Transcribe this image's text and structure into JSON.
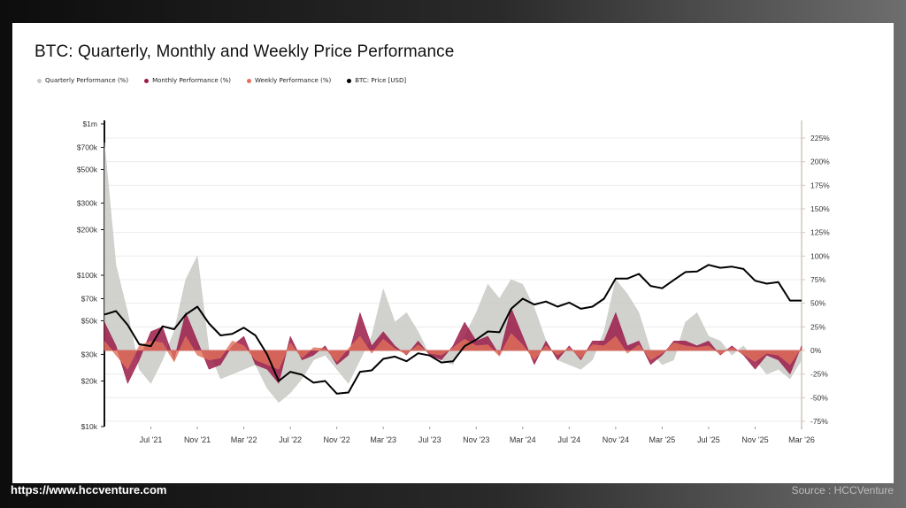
{
  "footer": {
    "url": "https://www.hccventure.com",
    "source": "Source : HCCVenture"
  },
  "chart_data": {
    "type": "line",
    "title": "BTC: Quarterly, Monthly and Weekly Price Performance",
    "legend": [
      {
        "label": "Quarterly Performance (%)",
        "color": "#c9c9c5"
      },
      {
        "label": "Monthly Performance (%)",
        "color": "#9b1b48"
      },
      {
        "label": "Weekly Performance (%)",
        "color": "#e0705a"
      },
      {
        "label": "BTC: Price [USD]",
        "color": "#000000"
      }
    ],
    "legend_position": "top-left",
    "y_left": {
      "scale": "log",
      "range": [
        10000,
        1000000
      ],
      "ticks": [
        10000,
        20000,
        30000,
        50000,
        70000,
        100000,
        200000,
        300000,
        500000,
        700000,
        1000000
      ],
      "tick_labels": [
        "$10k",
        "$20k",
        "$30k",
        "$50k",
        "$70k",
        "$100k",
        "$200k",
        "$300k",
        "$500k",
        "$700k",
        "$1m"
      ]
    },
    "y_right": {
      "range": [
        -75,
        225
      ],
      "ticks": [
        -75,
        -50,
        -25,
        0,
        25,
        50,
        75,
        100,
        125,
        150,
        175,
        200,
        225
      ],
      "tick_labels": [
        "-75%",
        "-50%",
        "-25%",
        "0%",
        "25%",
        "50%",
        "75%",
        "100%",
        "125%",
        "150%",
        "175%",
        "200%",
        "225%"
      ]
    },
    "x_range": [
      "2021-03",
      "2026-03"
    ],
    "x_ticks": [
      "2021-07",
      "2021-11",
      "2022-03",
      "2022-07",
      "2022-11",
      "2023-03",
      "2023-07",
      "2023-11",
      "2024-03",
      "2024-07",
      "2024-11",
      "2025-03",
      "2025-07",
      "2025-11",
      "2026-03"
    ],
    "x_tick_labels": [
      "Jul '21",
      "Nov '21",
      "Mar '22",
      "Jul '22",
      "Nov '22",
      "Mar '23",
      "Jul '23",
      "Nov '23",
      "Mar '24",
      "Jul '24",
      "Nov '24",
      "Mar '25",
      "Jul '25",
      "Nov '25",
      "Mar '26"
    ],
    "grid": true,
    "series": [
      {
        "name": "BTC: Price [USD]",
        "axis": "left",
        "x": [
          "2021-03",
          "2021-04",
          "2021-05",
          "2021-06",
          "2021-07",
          "2021-08",
          "2021-09",
          "2021-10",
          "2021-11",
          "2021-12",
          "2022-01",
          "2022-02",
          "2022-03",
          "2022-04",
          "2022-05",
          "2022-06",
          "2022-07",
          "2022-08",
          "2022-09",
          "2022-10",
          "2022-11",
          "2022-12",
          "2023-01",
          "2023-02",
          "2023-03",
          "2023-04",
          "2023-05",
          "2023-06",
          "2023-07",
          "2023-08",
          "2023-09",
          "2023-10",
          "2023-11",
          "2023-12",
          "2024-01",
          "2024-02",
          "2024-03",
          "2024-04",
          "2024-05",
          "2024-06",
          "2024-07",
          "2024-08",
          "2024-09",
          "2024-10",
          "2024-11",
          "2024-12",
          "2025-01",
          "2025-02",
          "2025-03",
          "2025-04",
          "2025-05",
          "2025-06",
          "2025-07",
          "2025-08",
          "2025-09",
          "2025-10",
          "2025-11",
          "2025-12",
          "2026-01",
          "2026-02",
          "2026-03"
        ],
        "values": [
          55000,
          58000,
          47000,
          35000,
          34000,
          46000,
          44000,
          55000,
          62000,
          48000,
          40000,
          41000,
          45000,
          40000,
          30000,
          20000,
          23000,
          22000,
          19500,
          20000,
          16500,
          16800,
          23000,
          23500,
          28000,
          29000,
          27000,
          30500,
          29500,
          26500,
          27000,
          34000,
          37500,
          42500,
          42000,
          60000,
          70000,
          64000,
          67000,
          62000,
          66000,
          60000,
          62000,
          70000,
          95000,
          95000,
          102000,
          85000,
          82000,
          93000,
          105000,
          106000,
          117000,
          112000,
          114000,
          110000,
          92000,
          88000,
          90000,
          68000,
          68000
        ]
      },
      {
        "name": "Quarterly Performance (%)",
        "axis": "right",
        "x": [
          "2021-03",
          "2021-04",
          "2021-05",
          "2021-06",
          "2021-07",
          "2021-08",
          "2021-09",
          "2021-10",
          "2021-11",
          "2021-12",
          "2022-01",
          "2022-02",
          "2022-03",
          "2022-04",
          "2022-05",
          "2022-06",
          "2022-07",
          "2022-08",
          "2022-09",
          "2022-10",
          "2022-11",
          "2022-12",
          "2023-01",
          "2023-02",
          "2023-03",
          "2023-04",
          "2023-05",
          "2023-06",
          "2023-07",
          "2023-08",
          "2023-09",
          "2023-10",
          "2023-11",
          "2023-12",
          "2024-01",
          "2024-02",
          "2024-03",
          "2024-04",
          "2024-05",
          "2024-06",
          "2024-07",
          "2024-08",
          "2024-09",
          "2024-10",
          "2024-11",
          "2024-12",
          "2025-01",
          "2025-02",
          "2025-03",
          "2025-04",
          "2025-05",
          "2025-06",
          "2025-07",
          "2025-08",
          "2025-09",
          "2025-10",
          "2025-11",
          "2025-12",
          "2026-01",
          "2026-02",
          "2026-03"
        ],
        "values": [
          220,
          90,
          40,
          -20,
          -35,
          -10,
          20,
          75,
          100,
          0,
          -30,
          -25,
          -20,
          -15,
          -40,
          -55,
          -45,
          -30,
          -10,
          -5,
          -20,
          -35,
          -10,
          15,
          65,
          30,
          40,
          20,
          -5,
          -10,
          -15,
          15,
          40,
          70,
          55,
          75,
          70,
          45,
          10,
          -10,
          -15,
          -20,
          -10,
          20,
          75,
          60,
          40,
          0,
          -15,
          -10,
          30,
          40,
          15,
          10,
          -5,
          5,
          -10,
          -25,
          -20,
          -30,
          -10
        ]
      },
      {
        "name": "Monthly Performance (%)",
        "axis": "right",
        "x": [
          "2021-03",
          "2021-04",
          "2021-05",
          "2021-06",
          "2021-07",
          "2021-08",
          "2021-09",
          "2021-10",
          "2021-11",
          "2021-12",
          "2022-01",
          "2022-02",
          "2022-03",
          "2022-04",
          "2022-05",
          "2022-06",
          "2022-07",
          "2022-08",
          "2022-09",
          "2022-10",
          "2022-11",
          "2022-12",
          "2023-01",
          "2023-02",
          "2023-03",
          "2023-04",
          "2023-05",
          "2023-06",
          "2023-07",
          "2023-08",
          "2023-09",
          "2023-10",
          "2023-11",
          "2023-12",
          "2024-01",
          "2024-02",
          "2024-03",
          "2024-04",
          "2024-05",
          "2024-06",
          "2024-07",
          "2024-08",
          "2024-09",
          "2024-10",
          "2024-11",
          "2024-12",
          "2025-01",
          "2025-02",
          "2025-03",
          "2025-04",
          "2025-05",
          "2025-06",
          "2025-07",
          "2025-08",
          "2025-09",
          "2025-10",
          "2025-11",
          "2025-12",
          "2026-01",
          "2026-02",
          "2026-03"
        ],
        "values": [
          30,
          5,
          -35,
          -10,
          20,
          25,
          -10,
          40,
          10,
          -20,
          -15,
          5,
          15,
          -15,
          -20,
          -35,
          15,
          -10,
          -5,
          5,
          -15,
          -5,
          40,
          5,
          20,
          5,
          -5,
          10,
          -5,
          -10,
          5,
          30,
          10,
          15,
          -5,
          45,
          15,
          -15,
          10,
          -10,
          5,
          -10,
          10,
          10,
          40,
          5,
          10,
          -15,
          -5,
          10,
          10,
          5,
          10,
          -5,
          5,
          -5,
          -20,
          -5,
          -10,
          -25,
          5
        ]
      },
      {
        "name": "Weekly Performance (%)",
        "axis": "right",
        "x": [
          "2021-03",
          "2021-04",
          "2021-05",
          "2021-06",
          "2021-07",
          "2021-08",
          "2021-09",
          "2021-10",
          "2021-11",
          "2021-12",
          "2022-01",
          "2022-02",
          "2022-03",
          "2022-04",
          "2022-05",
          "2022-06",
          "2022-07",
          "2022-08",
          "2022-09",
          "2022-10",
          "2022-11",
          "2022-12",
          "2023-01",
          "2023-02",
          "2023-03",
          "2023-04",
          "2023-05",
          "2023-06",
          "2023-07",
          "2023-08",
          "2023-09",
          "2023-10",
          "2023-11",
          "2023-12",
          "2024-01",
          "2024-02",
          "2024-03",
          "2024-04",
          "2024-05",
          "2024-06",
          "2024-07",
          "2024-08",
          "2024-09",
          "2024-10",
          "2024-11",
          "2024-12",
          "2025-01",
          "2025-02",
          "2025-03",
          "2025-04",
          "2025-05",
          "2025-06",
          "2025-07",
          "2025-08",
          "2025-09",
          "2025-10",
          "2025-11",
          "2025-12",
          "2026-01",
          "2026-02",
          "2026-03"
        ],
        "values": [
          10,
          -5,
          -20,
          5,
          10,
          8,
          -12,
          15,
          -5,
          -10,
          -8,
          10,
          5,
          -10,
          -15,
          -20,
          8,
          -8,
          3,
          2,
          -12,
          2,
          15,
          -3,
          12,
          2,
          -4,
          6,
          -3,
          -5,
          3,
          12,
          5,
          6,
          -6,
          18,
          6,
          -10,
          5,
          -5,
          3,
          -8,
          6,
          5,
          15,
          -3,
          6,
          -10,
          -3,
          8,
          5,
          3,
          5,
          -4,
          3,
          -4,
          -12,
          -3,
          -5,
          -15,
          3
        ]
      }
    ]
  }
}
